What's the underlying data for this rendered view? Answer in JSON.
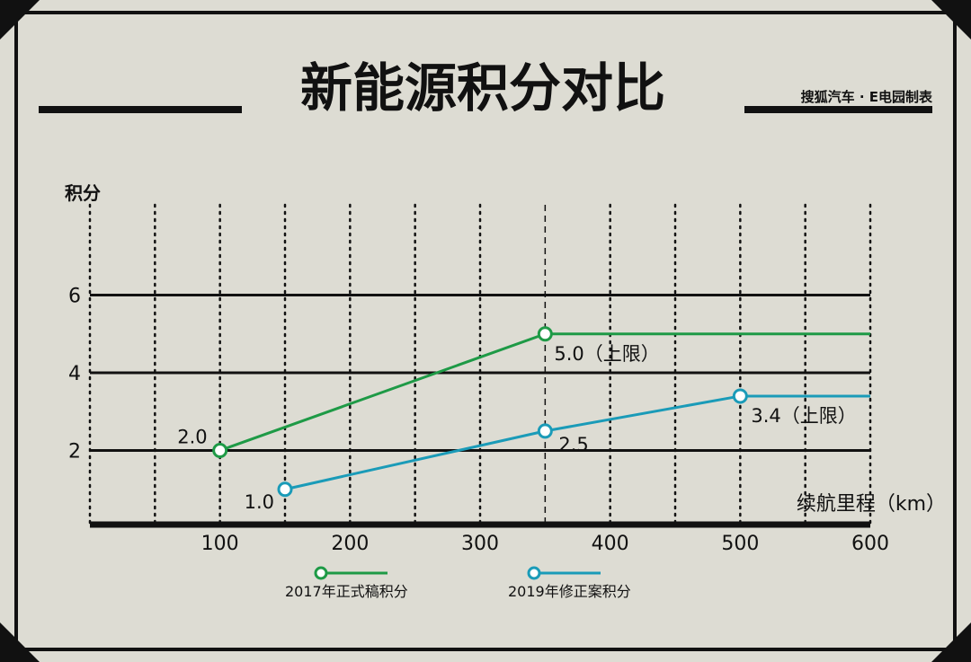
{
  "header": {
    "title": "新能源积分对比",
    "source": "搜狐汽车 · E电园制表"
  },
  "chart_data": {
    "type": "line",
    "title": "新能源积分对比",
    "ylabel": "积分",
    "xlabel": "续航里程（km）",
    "xlim": [
      0,
      600
    ],
    "ylim": [
      0,
      8
    ],
    "xticks": [
      "100",
      "200",
      "300",
      "400",
      "500",
      "600"
    ],
    "yticks": [
      "2",
      "4",
      "6"
    ],
    "series": [
      {
        "name": "2017年正式稿积分",
        "color": "#1e9a46",
        "points": [
          [
            100,
            2.0
          ],
          [
            350,
            5.0
          ],
          [
            600,
            5.0
          ]
        ],
        "markers": [
          [
            100,
            2.0
          ],
          [
            350,
            5.0
          ]
        ],
        "labels": [
          "2.0",
          "5.0（上限）"
        ]
      },
      {
        "name": "2019年修正案积分",
        "color": "#1a9bb8",
        "points": [
          [
            150,
            1.0
          ],
          [
            350,
            2.5
          ],
          [
            500,
            3.4
          ],
          [
            600,
            3.4
          ]
        ],
        "markers": [
          [
            150,
            1.0
          ],
          [
            350,
            2.5
          ],
          [
            500,
            3.4
          ]
        ],
        "labels": [
          "1.0",
          "2.5",
          "3.4（上限）"
        ]
      }
    ],
    "grid": true,
    "legend": "bottom"
  }
}
